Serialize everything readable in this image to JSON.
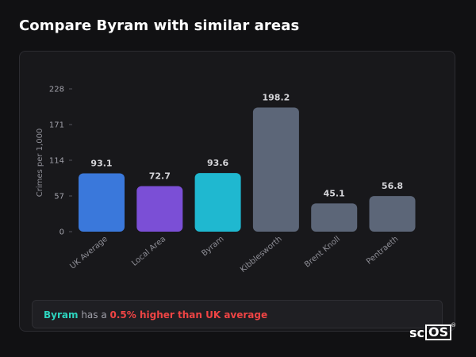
{
  "page": {
    "title": "Compare Byram with similar areas"
  },
  "chart_data": {
    "type": "bar",
    "title": "",
    "xlabel": "",
    "ylabel": "Crimes per 1,000",
    "ylim": [
      0,
      228
    ],
    "y_ticks": [
      0,
      57,
      114,
      171,
      228
    ],
    "categories": [
      "UK Average",
      "Local Area",
      "Byram",
      "Kibblesworth",
      "Brent Knoll",
      "Pentraeth"
    ],
    "values": [
      93.1,
      72.7,
      93.6,
      198.2,
      45.1,
      56.8
    ],
    "value_labels": [
      "93.1",
      "72.7",
      "93.6",
      "198.2",
      "45.1",
      "56.8"
    ],
    "colors": [
      "#3a78db",
      "#7b4fd6",
      "#1fb8d0",
      "#5c6678",
      "#5c6678",
      "#5c6678"
    ],
    "grid": false,
    "legend": "none"
  },
  "summary": {
    "area": "Byram",
    "middle": " has a ",
    "difference": "0.5% higher than UK average"
  },
  "logo": {
    "prefix": "sc",
    "boxed": "OS",
    "mark": "®"
  }
}
